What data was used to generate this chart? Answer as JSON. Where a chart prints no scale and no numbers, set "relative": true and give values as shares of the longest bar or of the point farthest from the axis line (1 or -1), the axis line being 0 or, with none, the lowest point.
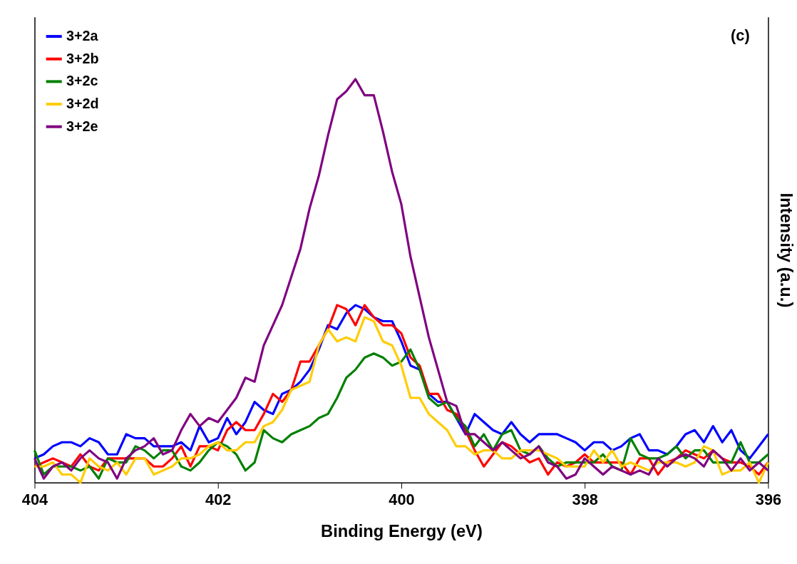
{
  "chart_data": {
    "type": "line",
    "relative": true,
    "xlabel": "Binding Energy (eV)",
    "ylabel": "Intensity (a.u.)",
    "annotations": [
      "(c)"
    ],
    "xlim": [
      404,
      396
    ],
    "xticks": [
      404,
      402,
      400,
      398,
      396
    ],
    "grid": false,
    "legend": "top left",
    "x": [
      404.0,
      403.9,
      403.8,
      403.7,
      403.6,
      403.5,
      403.4,
      403.3,
      403.2,
      403.1,
      403.0,
      402.9,
      402.8,
      402.7,
      402.6,
      402.5,
      402.4,
      402.3,
      402.2,
      402.1,
      402.0,
      401.9,
      401.8,
      401.7,
      401.6,
      401.5,
      401.4,
      401.3,
      401.2,
      401.1,
      401.0,
      400.9,
      400.8,
      400.7,
      400.6,
      400.5,
      400.4,
      400.3,
      400.2,
      400.1,
      400.0,
      399.9,
      399.8,
      399.7,
      399.6,
      399.5,
      399.4,
      399.3,
      399.2,
      399.1,
      399.0,
      398.9,
      398.8,
      398.7,
      398.6,
      398.5,
      398.4,
      398.3,
      398.2,
      398.1,
      398.0,
      397.9,
      397.8,
      397.7,
      397.6,
      397.5,
      397.4,
      397.3,
      397.2,
      397.1,
      397.0,
      396.9,
      396.8,
      396.7,
      396.6,
      396.5,
      396.4,
      396.3,
      396.2,
      396.1,
      396.0
    ],
    "series": [
      {
        "name": "3+2a",
        "color": "#0000ff",
        "values": [
          0.06,
          0.07,
          0.09,
          0.1,
          0.1,
          0.09,
          0.11,
          0.1,
          0.07,
          0.07,
          0.12,
          0.11,
          0.11,
          0.09,
          0.09,
          0.09,
          0.1,
          0.08,
          0.14,
          0.1,
          0.11,
          0.16,
          0.12,
          0.15,
          0.2,
          0.18,
          0.17,
          0.22,
          0.23,
          0.25,
          0.28,
          0.33,
          0.39,
          0.38,
          0.42,
          0.44,
          0.43,
          0.41,
          0.4,
          0.4,
          0.35,
          0.29,
          0.28,
          0.22,
          0.2,
          0.2,
          0.16,
          0.12,
          0.17,
          0.15,
          0.13,
          0.12,
          0.15,
          0.12,
          0.1,
          0.12,
          0.12,
          0.12,
          0.11,
          0.1,
          0.08,
          0.1,
          0.1,
          0.08,
          0.09,
          0.11,
          0.12,
          0.08,
          0.08,
          0.07,
          0.09,
          0.12,
          0.13,
          0.1,
          0.14,
          0.1,
          0.13,
          0.08,
          0.06,
          0.09,
          0.12
        ]
      },
      {
        "name": "3+2b",
        "color": "#ff0000",
        "values": [
          0.04,
          0.05,
          0.06,
          0.05,
          0.04,
          0.07,
          0.04,
          0.03,
          0.06,
          0.06,
          0.06,
          0.06,
          0.06,
          0.04,
          0.04,
          0.06,
          0.09,
          0.04,
          0.09,
          0.09,
          0.08,
          0.13,
          0.15,
          0.13,
          0.13,
          0.17,
          0.22,
          0.2,
          0.23,
          0.3,
          0.3,
          0.34,
          0.38,
          0.44,
          0.43,
          0.39,
          0.44,
          0.41,
          0.39,
          0.39,
          0.37,
          0.31,
          0.29,
          0.22,
          0.22,
          0.18,
          0.17,
          0.13,
          0.08,
          0.04,
          0.07,
          0.1,
          0.09,
          0.07,
          0.05,
          0.06,
          0.02,
          0.05,
          0.04,
          0.05,
          0.07,
          0.05,
          0.05,
          0.05,
          0.05,
          0.02,
          0.06,
          0.06,
          0.02,
          0.05,
          0.06,
          0.08,
          0.07,
          0.06,
          0.08,
          0.06,
          0.05,
          0.05,
          0.04,
          0.02,
          0.05
        ]
      },
      {
        "name": "3+2c",
        "color": "#008000",
        "values": [
          0.08,
          0.02,
          0.04,
          0.04,
          0.04,
          0.03,
          0.04,
          0.01,
          0.06,
          0.05,
          0.05,
          0.09,
          0.08,
          0.06,
          0.08,
          0.08,
          0.04,
          0.03,
          0.05,
          0.08,
          0.1,
          0.09,
          0.07,
          0.03,
          0.05,
          0.13,
          0.11,
          0.1,
          0.12,
          0.13,
          0.14,
          0.16,
          0.17,
          0.21,
          0.26,
          0.28,
          0.31,
          0.32,
          0.31,
          0.29,
          0.3,
          0.33,
          0.28,
          0.21,
          0.19,
          0.2,
          0.16,
          0.14,
          0.09,
          0.12,
          0.08,
          0.12,
          0.13,
          0.08,
          0.07,
          0.09,
          0.06,
          0.04,
          0.05,
          0.05,
          0.05,
          0.05,
          0.07,
          0.04,
          0.03,
          0.11,
          0.07,
          0.06,
          0.06,
          0.07,
          0.09,
          0.06,
          0.08,
          0.08,
          0.05,
          0.05,
          0.05,
          0.1,
          0.05,
          0.05,
          0.07
        ]
      },
      {
        "name": "3+2d",
        "color": "#ffcc00",
        "values": [
          0.04,
          0.04,
          0.05,
          0.02,
          0.02,
          0.0,
          0.06,
          0.04,
          0.03,
          0.05,
          0.02,
          0.06,
          0.06,
          0.02,
          0.03,
          0.04,
          0.06,
          0.06,
          0.07,
          0.09,
          0.1,
          0.08,
          0.08,
          0.1,
          0.1,
          0.14,
          0.15,
          0.18,
          0.23,
          0.24,
          0.25,
          0.34,
          0.38,
          0.35,
          0.36,
          0.35,
          0.41,
          0.4,
          0.35,
          0.34,
          0.29,
          0.21,
          0.21,
          0.17,
          0.15,
          0.13,
          0.09,
          0.09,
          0.07,
          0.08,
          0.08,
          0.06,
          0.06,
          0.08,
          0.08,
          0.08,
          0.07,
          0.06,
          0.04,
          0.04,
          0.04,
          0.08,
          0.05,
          0.08,
          0.04,
          0.05,
          0.04,
          0.03,
          0.05,
          0.05,
          0.05,
          0.04,
          0.05,
          0.09,
          0.08,
          0.02,
          0.03,
          0.03,
          0.05,
          0.0,
          0.05
        ]
      },
      {
        "name": "3+2e",
        "color": "#800080",
        "values": [
          0.06,
          0.01,
          0.04,
          0.05,
          0.03,
          0.06,
          0.08,
          0.06,
          0.05,
          0.01,
          0.06,
          0.08,
          0.09,
          0.11,
          0.07,
          0.08,
          0.13,
          0.17,
          0.14,
          0.16,
          0.15,
          0.18,
          0.21,
          0.26,
          0.25,
          0.34,
          0.39,
          0.44,
          0.51,
          0.58,
          0.68,
          0.76,
          0.86,
          0.95,
          0.97,
          1.0,
          0.96,
          0.96,
          0.87,
          0.77,
          0.69,
          0.56,
          0.46,
          0.36,
          0.28,
          0.2,
          0.19,
          0.12,
          0.12,
          0.1,
          0.08,
          0.1,
          0.08,
          0.06,
          0.07,
          0.09,
          0.05,
          0.04,
          0.01,
          0.02,
          0.06,
          0.04,
          0.02,
          0.04,
          0.03,
          0.02,
          0.03,
          0.02,
          0.06,
          0.04,
          0.06,
          0.07,
          0.06,
          0.04,
          0.08,
          0.06,
          0.03,
          0.06,
          0.03,
          0.05,
          0.03
        ]
      }
    ]
  }
}
